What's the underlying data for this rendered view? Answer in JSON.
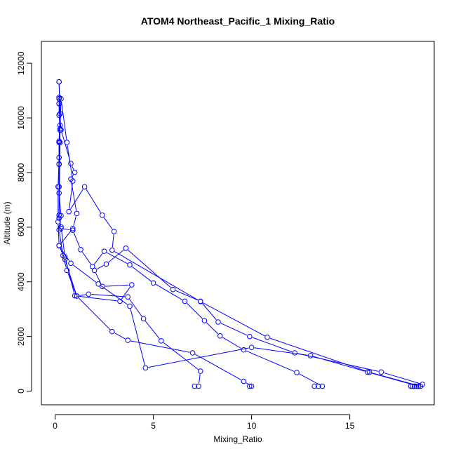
{
  "chart_data": {
    "type": "line",
    "title": "ATOM4 Northeast_Pacific_1 Mixing_Ratio",
    "xlabel": "Mixing_Ratio",
    "ylabel": "Altitude (m)",
    "xlim": [
      -0.7,
      19.3
    ],
    "ylim": [
      -500,
      12800
    ],
    "xticks": [
      0,
      5,
      10,
      15
    ],
    "yticks": [
      0,
      2000,
      4000,
      6000,
      8000,
      10000,
      12000
    ],
    "color": "#0000ff",
    "marker": "open-circle",
    "series": [
      {
        "values": [
          [
            7.1,
            180
          ],
          [
            7.3,
            180
          ],
          [
            7.4,
            730
          ],
          [
            5.4,
            1840
          ],
          [
            4.5,
            2650
          ],
          [
            3.7,
            3450
          ],
          [
            1.7,
            3550
          ],
          [
            1.1,
            3480
          ],
          [
            0.6,
            4420
          ],
          [
            0.4,
            4960
          ],
          [
            0.2,
            5900
          ],
          [
            0.3,
            6420
          ],
          [
            0.2,
            7250
          ],
          [
            0.2,
            8300
          ],
          [
            0.25,
            9550
          ],
          [
            0.2,
            10100
          ],
          [
            0.2,
            10700
          ]
        ]
      },
      {
        "values": [
          [
            9.9,
            180
          ],
          [
            10.0,
            180
          ],
          [
            9.6,
            360
          ],
          [
            7.0,
            1400
          ],
          [
            3.7,
            1860
          ],
          [
            2.9,
            2180
          ],
          [
            1.1,
            3480
          ],
          [
            0.5,
            4820
          ],
          [
            0.2,
            5330
          ],
          [
            0.15,
            6200
          ],
          [
            0.15,
            7480
          ],
          [
            0.2,
            8550
          ],
          [
            0.2,
            9150
          ],
          [
            0.25,
            10150
          ],
          [
            0.2,
            11320
          ]
        ]
      },
      {
        "values": [
          [
            13.2,
            180
          ],
          [
            13.4,
            180
          ],
          [
            13.6,
            180
          ],
          [
            12.3,
            680
          ],
          [
            9.6,
            1510
          ],
          [
            8.4,
            2020
          ],
          [
            7.6,
            2580
          ],
          [
            6.6,
            3290
          ],
          [
            5.0,
            3960
          ],
          [
            3.8,
            4620
          ],
          [
            2.5,
            5120
          ],
          [
            1.9,
            4560
          ],
          [
            1.3,
            5180
          ],
          [
            0.9,
            5890
          ],
          [
            0.3,
            5950
          ],
          [
            0.2,
            6440
          ],
          [
            0.2,
            7480
          ],
          [
            0.2,
            8310
          ],
          [
            0.2,
            9100
          ],
          [
            0.25,
            9730
          ],
          [
            0.2,
            10530
          ]
        ]
      },
      {
        "values": [
          [
            18.1,
            180
          ],
          [
            18.3,
            180
          ],
          [
            18.4,
            180
          ],
          [
            18.7,
            250
          ],
          [
            16.6,
            700
          ],
          [
            12.2,
            1400
          ],
          [
            9.9,
            2000
          ],
          [
            8.3,
            2530
          ],
          [
            7.4,
            3290
          ],
          [
            6.0,
            3720
          ],
          [
            3.6,
            5230
          ],
          [
            2.6,
            4650
          ],
          [
            2.0,
            4420
          ],
          [
            2.4,
            3830
          ],
          [
            3.9,
            3890
          ],
          [
            3.3,
            3290
          ],
          [
            1.0,
            3490
          ],
          [
            0.5,
            4920
          ],
          [
            0.3,
            6010
          ],
          [
            0.2,
            6330
          ],
          [
            0.25,
            9100
          ],
          [
            0.2,
            11320
          ]
        ]
      },
      {
        "values": [
          [
            18.3,
            180
          ],
          [
            18.6,
            180
          ],
          [
            16.0,
            690
          ],
          [
            10.8,
            1970
          ],
          [
            7.4,
            3280
          ],
          [
            2.9,
            5160
          ],
          [
            3.0,
            5840
          ],
          [
            2.4,
            6440
          ],
          [
            1.5,
            7480
          ],
          [
            0.7,
            6570
          ],
          [
            0.9,
            7690
          ],
          [
            0.6,
            9100
          ],
          [
            0.3,
            10700
          ],
          [
            0.25,
            9600
          ],
          [
            0.2,
            10750
          ]
        ]
      },
      {
        "values": [
          [
            18.2,
            180
          ],
          [
            18.5,
            180
          ],
          [
            15.9,
            700
          ],
          [
            13.0,
            1300
          ],
          [
            10.0,
            1600
          ],
          [
            4.6,
            850
          ],
          [
            3.8,
            3110
          ],
          [
            2.2,
            3920
          ],
          [
            0.8,
            4680
          ],
          [
            0.2,
            5320
          ],
          [
            0.9,
            5950
          ],
          [
            1.1,
            6500
          ],
          [
            0.8,
            7760
          ],
          [
            1.0,
            8010
          ],
          [
            0.8,
            8330
          ],
          [
            0.3,
            9560
          ],
          [
            0.2,
            10520
          ]
        ]
      }
    ]
  }
}
